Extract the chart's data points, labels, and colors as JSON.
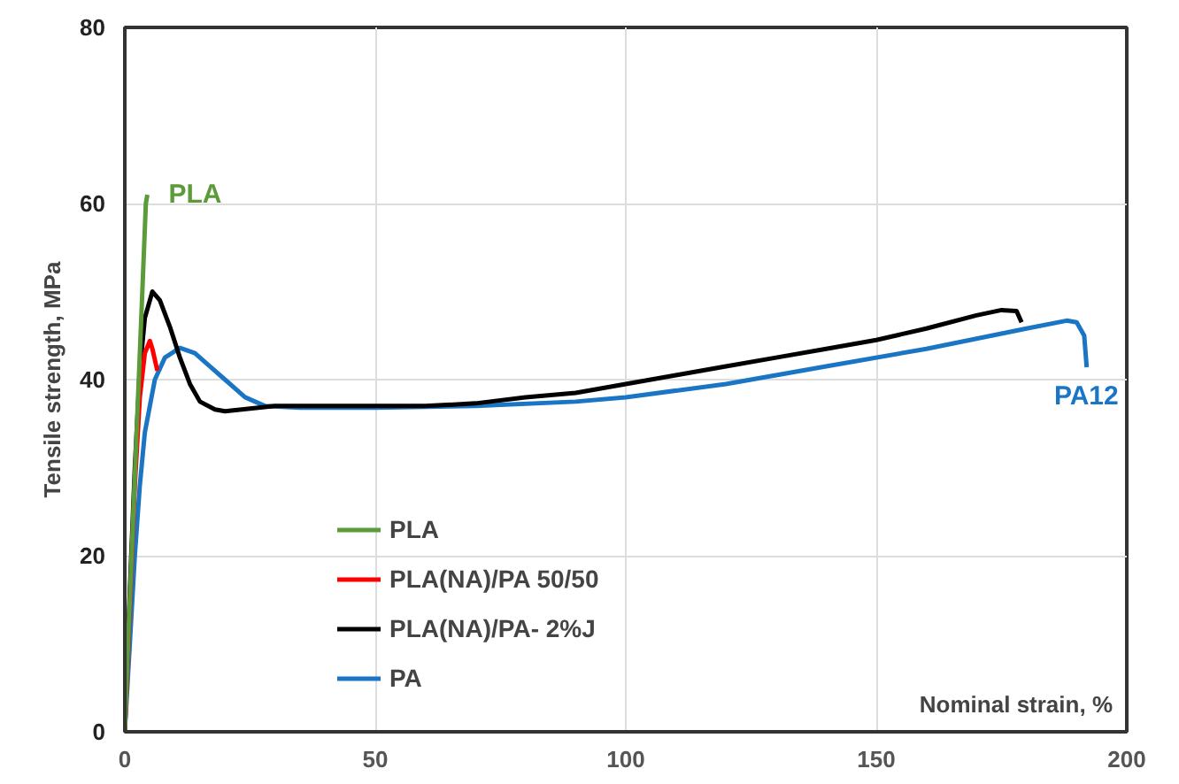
{
  "chart_data": {
    "type": "line",
    "xlabel": "Nominal strain, %",
    "ylabel": "Tensile strength, MPa",
    "xlim": [
      0,
      200
    ],
    "xticks": [
      0,
      50,
      100,
      150,
      200
    ],
    "ylim": [
      0,
      80
    ],
    "yticks": [
      0,
      20,
      40,
      60,
      80
    ],
    "grid": true,
    "legend": "bottom left",
    "line_style": "solid",
    "marker": "none",
    "annotations": [
      "PLA",
      "PA12"
    ],
    "series": [
      {
        "name": "PLA",
        "color": "#5b9b3a",
        "x": [
          0,
          0.5,
          1.5,
          2.5,
          3.5,
          4.2,
          4.5
        ],
        "values": [
          0,
          8,
          22,
          36,
          50,
          60,
          61
        ]
      },
      {
        "name": "PLA(NA)/PA 50/50",
        "color": "#ff0000",
        "x": [
          0,
          1,
          2,
          3,
          4,
          5,
          5.5,
          6.5
        ],
        "values": [
          0,
          14,
          28,
          38,
          43,
          44.4,
          43.5,
          41
        ]
      },
      {
        "name": "PLA(NA)/PA- 2%J",
        "color": "#000000",
        "x": [
          0,
          1,
          2,
          3,
          4,
          5.5,
          7,
          9,
          11,
          13,
          15,
          18,
          20,
          25,
          30,
          40,
          50,
          60,
          70,
          80,
          90,
          100,
          110,
          120,
          130,
          140,
          150,
          160,
          170,
          175,
          178,
          179
        ],
        "values": [
          0,
          16,
          30,
          41,
          47,
          50,
          49,
          46,
          42.5,
          39.5,
          37.5,
          36.6,
          36.4,
          36.7,
          37,
          37,
          37,
          37,
          37.3,
          38,
          38.5,
          39.5,
          40.5,
          41.5,
          42.5,
          43.5,
          44.5,
          45.8,
          47.3,
          47.9,
          47.8,
          46.5
        ]
      },
      {
        "name": "PA",
        "color": "#1a75c4",
        "x": [
          0,
          1,
          2,
          3,
          4,
          6,
          8,
          11,
          14,
          17,
          20,
          24,
          28,
          35,
          50,
          70,
          90,
          100,
          120,
          140,
          160,
          180,
          188,
          190,
          191.5,
          192
        ],
        "values": [
          0,
          10,
          20,
          28,
          34,
          40,
          42.5,
          43.6,
          43,
          41.5,
          40,
          38,
          37,
          36.8,
          36.8,
          37,
          37.5,
          38,
          39.5,
          41.5,
          43.5,
          45.8,
          46.7,
          46.5,
          45,
          41.4
        ]
      }
    ]
  }
}
